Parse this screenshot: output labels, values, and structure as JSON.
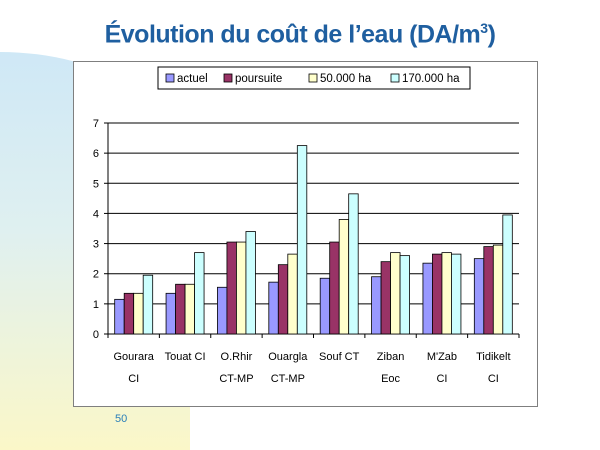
{
  "slide": {
    "title_main": "Évolution du coût de l’eau (DA/m",
    "title_sup": "3",
    "title_close": ")",
    "page_number": "50"
  },
  "colors": {
    "title": "#1f5fa0",
    "actuel": "#9999ff",
    "poursuite": "#993366",
    "50000ha": "#ffffcc",
    "170000ha": "#ccffff"
  },
  "chart_data": {
    "type": "bar",
    "categories": [
      [
        "Gourara",
        "CI"
      ],
      [
        "Touat CI"
      ],
      [
        "O.Rhir",
        "CT-MP"
      ],
      [
        "Ouargla",
        "CT-MP"
      ],
      [
        "Souf CT"
      ],
      [
        "Ziban",
        "Eoc"
      ],
      [
        "M'Zab",
        "CI"
      ],
      [
        "Tidikelt",
        "CI"
      ]
    ],
    "series": [
      {
        "name": "actuel",
        "color": "#9999ff",
        "values": [
          1.15,
          1.35,
          1.55,
          1.72,
          1.85,
          1.9,
          2.35,
          2.5
        ]
      },
      {
        "name": "poursuite",
        "color": "#993366",
        "values": [
          1.35,
          1.65,
          3.05,
          2.3,
          3.05,
          2.4,
          2.65,
          2.9
        ]
      },
      {
        "name": "50.000 ha",
        "color": "#ffffcc",
        "values": [
          1.35,
          1.65,
          3.05,
          2.65,
          3.8,
          2.7,
          2.7,
          2.95
        ]
      },
      {
        "name": "170.000 ha",
        "color": "#ccffff",
        "values": [
          1.95,
          2.7,
          3.4,
          6.25,
          4.65,
          2.6,
          2.65,
          3.95
        ]
      }
    ],
    "yticks": [
      "0",
      "1",
      "2",
      "3",
      "4",
      "5",
      "6",
      "7"
    ],
    "ylim": [
      0,
      7
    ],
    "title": "",
    "xlabel": "",
    "ylabel": "",
    "grid": true,
    "legend_position": "top"
  }
}
